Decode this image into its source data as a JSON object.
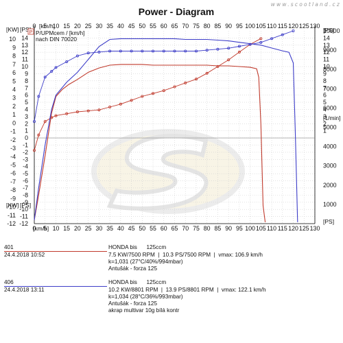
{
  "watermark": "www.scootland.cz",
  "chart_data": {
    "type": "line",
    "title": "Power - Diagram",
    "legend_note": {
      "label": "P/UPMcem / [km/h]",
      "norm": "nach DIN 70020"
    },
    "x_axis": {
      "unit": "[km/h]",
      "range": [
        0,
        130
      ],
      "ticks": [
        "0",
        "5",
        "10",
        "15",
        "20",
        "25",
        "30",
        "35",
        "40",
        "45",
        "50",
        "55",
        "60",
        "65",
        "70",
        "75",
        "80",
        "85",
        "90",
        "95",
        "100",
        "105",
        "110",
        "115",
        "120",
        "125",
        "130"
      ]
    },
    "left_axis_kw": {
      "unit": "[KW]",
      "range": [
        -12,
        11
      ],
      "ticks": [
        "10",
        "9",
        "8",
        "7",
        "6",
        "5",
        "4",
        "3",
        "2",
        "1",
        "0",
        "-1",
        "-2",
        "-3",
        "-4",
        "-5",
        "-6",
        "-7",
        "-8",
        "-9",
        "-10",
        "-11",
        "-12"
      ]
    },
    "left_axis_ps": {
      "unit": "[PS]",
      "range": [
        -12,
        15
      ],
      "ticks": [
        "14",
        "13",
        "12",
        "11",
        "10",
        "9",
        "8",
        "7",
        "6",
        "5",
        "4",
        "3",
        "2",
        "1",
        "0",
        "-1",
        "-2",
        "-3",
        "-4",
        "-5",
        "-6",
        "-7",
        "-8",
        "-9",
        "-10",
        "-11",
        "-12"
      ]
    },
    "right_axis_ps": {
      "unit": "[PS]",
      "range": [
        0,
        14
      ],
      "ticks": [
        "14",
        "13",
        "12",
        "11",
        "10",
        "9",
        "8",
        "7",
        "6",
        "5",
        "4",
        "3",
        "2",
        "1"
      ]
    },
    "right_axis_rpm": {
      "unit": "[1/min]",
      "range": [
        0,
        10000
      ],
      "ticks": [
        "10000",
        "9000",
        "8000",
        "7000",
        "6000",
        "5000",
        "4000",
        "3000",
        "2000",
        "1000"
      ]
    },
    "series": [
      {
        "name": "401",
        "color": "#c0392b",
        "power_ps": {
          "x": [
            0,
            2,
            5,
            8,
            10,
            13,
            16,
            20,
            25,
            30,
            35,
            40,
            45,
            50,
            55,
            60,
            65,
            70,
            75,
            80,
            85,
            90,
            95,
            100,
            103,
            104,
            105,
            106,
            107
          ],
          "y": [
            -11.5,
            -8,
            -2.5,
            3.5,
            5.8,
            6.8,
            7.5,
            8.2,
            9.2,
            9.8,
            10.2,
            10.3,
            10.3,
            10.3,
            10.2,
            10.2,
            10.2,
            10.2,
            10.2,
            10.2,
            10.1,
            10.1,
            10.0,
            9.9,
            9.7,
            8.5,
            2.0,
            -9.5,
            -11.8
          ]
        },
        "rpm": {
          "x": [
            0,
            2,
            5,
            8,
            10,
            15,
            20,
            25,
            30,
            35,
            40,
            45,
            50,
            55,
            60,
            65,
            70,
            75,
            80,
            85,
            90,
            95,
            100,
            105
          ],
          "y": [
            3800,
            4600,
            5300,
            5500,
            5600,
            5700,
            5800,
            5850,
            5900,
            6050,
            6200,
            6400,
            6600,
            6750,
            6900,
            7100,
            7300,
            7500,
            7800,
            8150,
            8500,
            8900,
            9300,
            9600
          ]
        }
      },
      {
        "name": "406",
        "color": "#3c3cc8",
        "power_ps": {
          "x": [
            0,
            2,
            5,
            8,
            10,
            15,
            20,
            25,
            30,
            35,
            40,
            45,
            50,
            55,
            60,
            65,
            70,
            75,
            80,
            85,
            90,
            95,
            100,
            105,
            110,
            115,
            118,
            120,
            121,
            122
          ],
          "y": [
            -11.5,
            -7,
            -1,
            4,
            6,
            7.8,
            9.2,
            11.0,
            12.8,
            13.8,
            13.9,
            13.9,
            13.9,
            13.9,
            13.9,
            13.9,
            13.8,
            13.8,
            13.8,
            13.7,
            13.6,
            13.4,
            13.2,
            13.0,
            12.6,
            12.2,
            12.0,
            10.5,
            0,
            -11.8
          ]
        },
        "rpm": {
          "x": [
            0,
            2,
            5,
            8,
            10,
            15,
            20,
            25,
            30,
            35,
            40,
            45,
            50,
            55,
            60,
            65,
            70,
            75,
            80,
            85,
            90,
            95,
            100,
            105,
            110,
            115,
            120
          ],
          "y": [
            5300,
            6600,
            7600,
            7900,
            8100,
            8400,
            8700,
            8850,
            8900,
            8950,
            8950,
            8950,
            8950,
            8950,
            8950,
            8950,
            8950,
            8950,
            9000,
            9050,
            9100,
            9200,
            9300,
            9400,
            9600,
            9800,
            10000
          ]
        }
      }
    ]
  },
  "runs": [
    {
      "id": "401",
      "date": "24.4.2018  10:52",
      "color": "#c0392b",
      "lines": [
        "HONDA bis      125ccm",
        "7.5 KW/7500 RPM  |  10.3 PS/7500 RPM  |  vmax: 106.9 km/h",
        "k=1,031 (27°C/40%/994mbar)",
        "Antušák - forza 125"
      ]
    },
    {
      "id": "406",
      "date": "24.4.2018  13:11",
      "color": "#3c3cc8",
      "lines": [
        "HONDA bis      125ccm",
        "10.2 KW/8801 RPM  |  13.9 PS/8801 RPM  |  vmax: 122.1 km/h",
        "k=1,034 (28°C/36%/993mbar)",
        "Antušák - forza 125",
        "akrap multivar 10g bílá kontr"
      ]
    }
  ]
}
